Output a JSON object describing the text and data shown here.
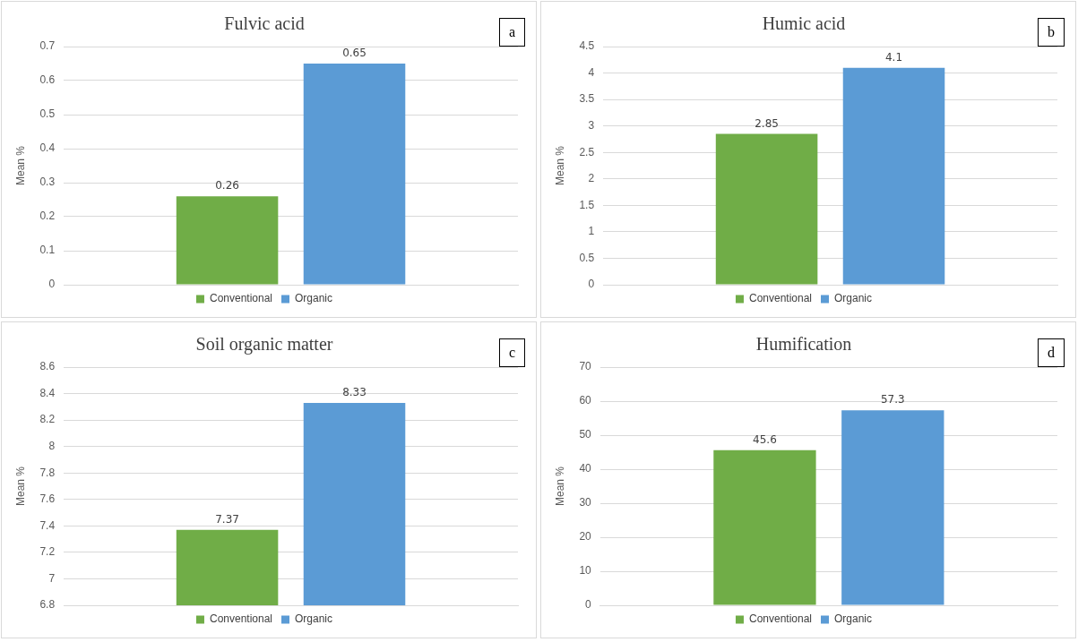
{
  "chart_data": [
    {
      "type": "bar",
      "title": "Fulvic acid",
      "ylabel": "Mean %",
      "categories": [
        null
      ],
      "series": [
        {
          "name": "Conventional",
          "color": "#70ad47",
          "values": [
            0.26
          ]
        },
        {
          "name": "Organic",
          "color": "#5b9bd5",
          "values": [
            0.65
          ]
        }
      ],
      "ylim": [
        0,
        0.7
      ],
      "yticks": [
        0,
        0.1,
        0.2,
        0.3,
        0.4,
        0.5,
        0.6,
        0.7
      ],
      "grid": "y",
      "legend": "bottom",
      "data_labels": true,
      "annotations": [
        "a"
      ]
    },
    {
      "type": "bar",
      "title": "Humic acid",
      "ylabel": "Mean %",
      "categories": [
        null
      ],
      "series": [
        {
          "name": "Conventional",
          "color": "#70ad47",
          "values": [
            2.85
          ]
        },
        {
          "name": "Organic",
          "color": "#5b9bd5",
          "values": [
            4.1
          ]
        }
      ],
      "ylim": [
        0,
        4.5
      ],
      "yticks": [
        0,
        0.5,
        1,
        1.5,
        2,
        2.5,
        3,
        3.5,
        4,
        4.5
      ],
      "grid": "y",
      "legend": "bottom",
      "data_labels": true,
      "annotations": [
        "b"
      ]
    },
    {
      "type": "bar",
      "title": "Soil organic matter",
      "ylabel": "Mean %",
      "categories": [
        null
      ],
      "series": [
        {
          "name": "Conventional",
          "color": "#70ad47",
          "values": [
            7.37
          ]
        },
        {
          "name": "Organic",
          "color": "#5b9bd5",
          "values": [
            8.33
          ]
        }
      ],
      "ylim": [
        6.8,
        8.6
      ],
      "yticks": [
        6.8,
        7,
        7.2,
        7.4,
        7.6,
        7.8,
        8,
        8.2,
        8.4,
        8.6
      ],
      "grid": "y",
      "legend": "bottom",
      "data_labels": true,
      "annotations": [
        "c"
      ]
    },
    {
      "type": "bar",
      "title": "Humification",
      "ylabel": "Mean %",
      "categories": [
        null
      ],
      "series": [
        {
          "name": "Conventional",
          "color": "#70ad47",
          "values": [
            45.6
          ]
        },
        {
          "name": "Organic",
          "color": "#5b9bd5",
          "values": [
            57.3
          ]
        }
      ],
      "ylim": [
        0,
        70
      ],
      "yticks": [
        0,
        10,
        20,
        30,
        40,
        50,
        60,
        70
      ],
      "grid": "y",
      "legend": "bottom",
      "data_labels": true,
      "annotations": [
        "d"
      ]
    }
  ]
}
